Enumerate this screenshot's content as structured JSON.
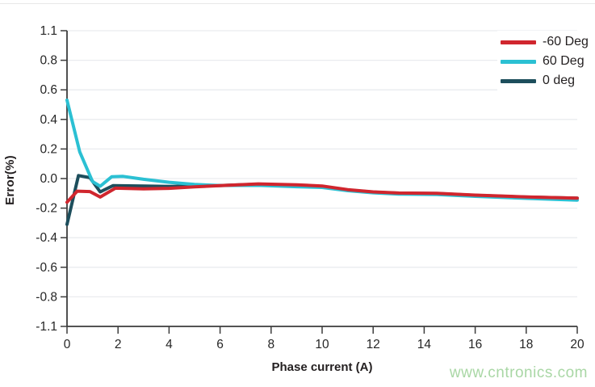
{
  "watermark": "www.cntronics.com",
  "colors": {
    "grid": "#eaecef",
    "axis": "#3c3c3c",
    "tick_text": "#262626",
    "watermark": "#a9d7a5",
    "background": "#ffffff"
  },
  "chart_data": {
    "type": "line",
    "title": "",
    "xlabel": "Phase current (A)",
    "ylabel": "Error(%)",
    "xlim": [
      0,
      20
    ],
    "x_ticks": [
      0,
      2,
      4,
      6,
      8,
      10,
      12,
      14,
      16,
      18,
      20
    ],
    "y_tick_labels": [
      "1.1",
      "0.8",
      "0.6",
      "0.4",
      "0.2",
      "0.0",
      "-0.2",
      "-0.4",
      "-0.6",
      "-0.8",
      "-1.1"
    ],
    "grid": "horizontal",
    "legend_position": "top-right-inside",
    "series": [
      {
        "name": "-60 Deg",
        "color": "#d0262e",
        "points": [
          [
            0,
            -0.16
          ],
          [
            0.4,
            -0.085
          ],
          [
            0.9,
            -0.088
          ],
          [
            1.3,
            -0.125
          ],
          [
            1.9,
            -0.065
          ],
          [
            3,
            -0.07
          ],
          [
            4,
            -0.066
          ],
          [
            5,
            -0.056
          ],
          [
            6,
            -0.048
          ],
          [
            7.5,
            -0.036
          ],
          [
            9,
            -0.042
          ],
          [
            10,
            -0.05
          ],
          [
            11,
            -0.075
          ],
          [
            12,
            -0.09
          ],
          [
            13,
            -0.098
          ],
          [
            14.5,
            -0.1
          ],
          [
            16,
            -0.112
          ],
          [
            18,
            -0.124
          ],
          [
            20,
            -0.132
          ]
        ]
      },
      {
        "name": "60 Deg",
        "color": "#2bc0d3",
        "points": [
          [
            0,
            0.53
          ],
          [
            0.5,
            0.18
          ],
          [
            1,
            -0.02
          ],
          [
            1.3,
            -0.052
          ],
          [
            1.75,
            0.012
          ],
          [
            2.2,
            0.015
          ],
          [
            3,
            -0.005
          ],
          [
            4,
            -0.025
          ],
          [
            5,
            -0.04
          ],
          [
            6,
            -0.047
          ],
          [
            7.5,
            -0.046
          ],
          [
            9,
            -0.055
          ],
          [
            10,
            -0.06
          ],
          [
            11,
            -0.082
          ],
          [
            12,
            -0.096
          ],
          [
            13,
            -0.105
          ],
          [
            14.5,
            -0.108
          ],
          [
            16,
            -0.12
          ],
          [
            18,
            -0.134
          ],
          [
            20,
            -0.146
          ]
        ]
      },
      {
        "name": "0 deg",
        "color": "#1d4e5c",
        "points": [
          [
            0,
            -0.31
          ],
          [
            0.45,
            0.02
          ],
          [
            0.9,
            0.006
          ],
          [
            1.3,
            -0.09
          ],
          [
            1.8,
            -0.048
          ],
          [
            3,
            -0.05
          ],
          [
            4,
            -0.053
          ],
          [
            5,
            -0.05
          ],
          [
            6,
            -0.047
          ],
          [
            7.5,
            -0.038
          ],
          [
            9,
            -0.046
          ],
          [
            10,
            -0.053
          ],
          [
            11,
            -0.077
          ],
          [
            12,
            -0.091
          ],
          [
            13,
            -0.099
          ],
          [
            14.5,
            -0.101
          ],
          [
            16,
            -0.113
          ],
          [
            18,
            -0.125
          ],
          [
            20,
            -0.133
          ]
        ]
      }
    ]
  }
}
